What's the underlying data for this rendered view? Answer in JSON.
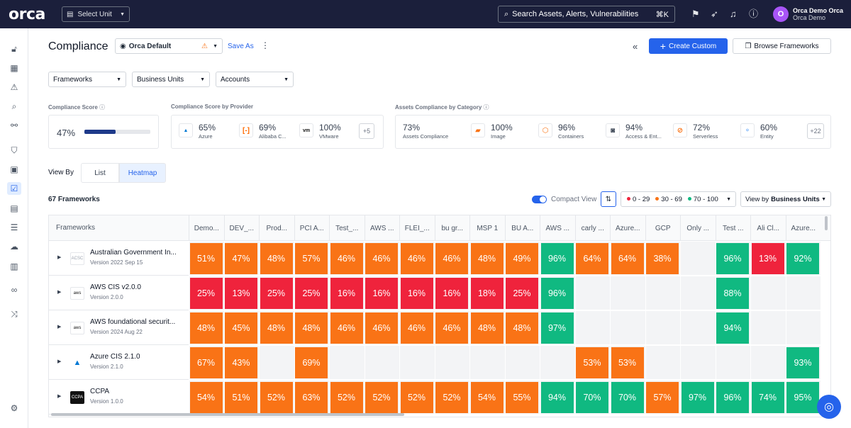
{
  "topbar": {
    "logo": "orca",
    "unit_select": "Select Unit",
    "search_placeholder": "Search Assets, Alerts, Vulnerabilities",
    "search_shortcut": "⌘K",
    "user_initial": "O",
    "user_name": "Orca Demo Orca",
    "user_org": "Orca Demo"
  },
  "header": {
    "title": "Compliance",
    "view_select": "Orca Default",
    "save_as": "Save As",
    "create_custom": "Create Custom",
    "browse_frameworks": "Browse Frameworks"
  },
  "filters": [
    "Frameworks",
    "Business Units",
    "Accounts"
  ],
  "compliance_score": {
    "label": "Compliance Score",
    "value": "47%",
    "progress": 0.47
  },
  "by_provider": {
    "label": "Compliance Score by Provider",
    "items": [
      {
        "value": "65%",
        "name": "Azure",
        "icon": "azure-icon"
      },
      {
        "value": "69%",
        "name": "Alibaba C...",
        "icon": "alibaba-icon"
      },
      {
        "value": "100%",
        "name": "VMware",
        "icon": "vmware-icon"
      }
    ],
    "more": "+5"
  },
  "by_category": {
    "label": "Assets Compliance by Category",
    "items": [
      {
        "value": "73%",
        "name": "Assets Compliance"
      },
      {
        "value": "100%",
        "name": "Image",
        "icon": "image-icon"
      },
      {
        "value": "96%",
        "name": "Containers",
        "icon": "container-icon"
      },
      {
        "value": "94%",
        "name": "Access & Ent...",
        "icon": "access-icon"
      },
      {
        "value": "72%",
        "name": "Serverless",
        "icon": "serverless-icon"
      },
      {
        "value": "60%",
        "name": "Entity",
        "icon": "entity-icon"
      }
    ],
    "more": "+22"
  },
  "view_by": {
    "label": "View By",
    "options": [
      "List",
      "Heatmap"
    ],
    "selected": "Heatmap"
  },
  "frameworks_count": "67 Frameworks",
  "compact_view": {
    "label": "Compact View",
    "on": true
  },
  "legend": {
    "ranges": [
      {
        "label": "0 - 29",
        "color": "#ef233c"
      },
      {
        "label": "30 - 69",
        "color": "#f97316"
      },
      {
        "label": "70 - 100",
        "color": "#10b981"
      }
    ]
  },
  "view_by_units": {
    "prefix": "View by",
    "value": "Business Units"
  },
  "grid": {
    "first_header": "Frameworks",
    "columns": [
      "Demo...",
      "DEV_...",
      "Prod...",
      "PCI A...",
      "Test_...",
      "AWS ...",
      "FLEI_...",
      "bu gr...",
      "MSP 1",
      "BU A...",
      "AWS ...",
      "carly ...",
      "Azure...",
      "GCP",
      "Only ...",
      "Test ...",
      "Ali Cl...",
      "Azure..."
    ],
    "rows": [
      {
        "name": "Australian Government In...",
        "version": "Version 2022 Sep 15",
        "icon": "acsc-icon",
        "cells": [
          "51%",
          "47%",
          "48%",
          "57%",
          "46%",
          "46%",
          "46%",
          "46%",
          "48%",
          "49%",
          "96%",
          "64%",
          "64%",
          "38%",
          "",
          "96%",
          "13%",
          "92%"
        ]
      },
      {
        "name": "AWS CIS v2.0.0",
        "version": "Version 2.0.0",
        "icon": "aws-icon",
        "cells": [
          "25%",
          "13%",
          "25%",
          "25%",
          "16%",
          "16%",
          "16%",
          "16%",
          "18%",
          "25%",
          "96%",
          "",
          "",
          "",
          "",
          "88%",
          "",
          ""
        ]
      },
      {
        "name": "AWS foundational securit...",
        "version": "Version 2024 Aug 22",
        "icon": "aws-icon",
        "cells": [
          "48%",
          "45%",
          "48%",
          "48%",
          "46%",
          "46%",
          "46%",
          "46%",
          "48%",
          "48%",
          "97%",
          "",
          "",
          "",
          "",
          "94%",
          "",
          ""
        ]
      },
      {
        "name": "Azure CIS 2.1.0",
        "version": "Version 2.1.0",
        "icon": "azure-icon",
        "cells": [
          "67%",
          "43%",
          "",
          "69%",
          "",
          "",
          "",
          "",
          "",
          "",
          "",
          "53%",
          "53%",
          "",
          "",
          "",
          "",
          "93%"
        ]
      },
      {
        "name": "CCPA",
        "version": "Version 1.0.0",
        "icon": "ccpa-icon",
        "cells": [
          "54%",
          "51%",
          "52%",
          "63%",
          "52%",
          "52%",
          "52%",
          "52%",
          "54%",
          "55%",
          "94%",
          "70%",
          "70%",
          "57%",
          "97%",
          "96%",
          "74%",
          "95%"
        ]
      }
    ]
  }
}
